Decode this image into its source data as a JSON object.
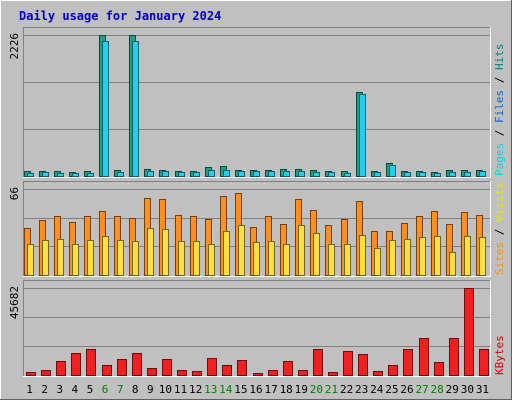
{
  "chart_data": {
    "type": "bar",
    "title": "Daily usage for January 2024",
    "days": [
      "1",
      "2",
      "3",
      "4",
      "5",
      "6",
      "7",
      "8",
      "9",
      "10",
      "11",
      "12",
      "13",
      "14",
      "15",
      "16",
      "17",
      "18",
      "19",
      "20",
      "21",
      "22",
      "23",
      "24",
      "25",
      "26",
      "27",
      "28",
      "29",
      "30",
      "31"
    ],
    "weekend_days": [
      "6",
      "7",
      "13",
      "14",
      "20",
      "21",
      "27",
      "28"
    ],
    "panels": [
      {
        "id": "hits",
        "max_label": "2226",
        "ymax": 2226,
        "legend": [
          "Pages",
          "Files",
          "Hits"
        ],
        "legend_colors": [
          "#00d8e8",
          "#0068d0",
          "#00807a"
        ],
        "series": [
          {
            "name": "Hits",
            "color": "#20a080",
            "values": [
              75,
              75,
              75,
              65,
              75,
              2226,
              90,
              2226,
              115,
              90,
              85,
              85,
              135,
              155,
              100,
              95,
              95,
              110,
              110,
              95,
              80,
              75,
              1320,
              85,
              200,
              85,
              75,
              65,
              95,
              90,
              95
            ]
          },
          {
            "name": "Files",
            "color": "#20d0f0",
            "values": [
              55,
              60,
              55,
              45,
              55,
              2130,
              70,
              2130,
              80,
              75,
              65,
              70,
              100,
              95,
              80,
              75,
              75,
              85,
              85,
              70,
              60,
              55,
              1290,
              65,
              170,
              60,
              60,
              45,
              70,
              70,
              75
            ]
          }
        ]
      },
      {
        "id": "visits",
        "max_label": "66",
        "ymax": 66,
        "legend": [
          "Sites",
          "Visits"
        ],
        "legend_colors": [
          "#ff9000",
          "#e8e800"
        ],
        "series": [
          {
            "name": "Visits",
            "color": "#ff9020",
            "values": [
              36,
              42,
              45,
              41,
              45,
              49,
              45,
              44,
              59,
              58,
              46,
              45,
              43,
              61,
              63,
              37,
              45,
              39,
              58,
              50,
              38,
              43,
              57,
              34,
              34,
              40,
              45,
              49,
              39,
              48,
              46
            ]
          },
          {
            "name": "Sites",
            "color": "#ffe040",
            "values": [
              24,
              27,
              28,
              24,
              27,
              30,
              27,
              26,
              36,
              35,
              26,
              26,
              24,
              34,
              38,
              25,
              26,
              24,
              38,
              32,
              24,
              24,
              31,
              21,
              27,
              28,
              29,
              30,
              18,
              30,
              29
            ]
          }
        ]
      },
      {
        "id": "kbytes",
        "max_label": "45682",
        "ymax": 45682,
        "legend": [
          "KBytes"
        ],
        "legend_colors": [
          "#e00000"
        ],
        "series": [
          {
            "name": "KBytes",
            "color": "#f02020",
            "values": [
              1500,
              2800,
              7500,
              11500,
              13500,
              5500,
              8500,
              11500,
              3500,
              8500,
              2500,
              2000,
              9000,
              5500,
              8000,
              1000,
              2800,
              7500,
              2800,
              13500,
              1500,
              12500,
              11000,
              2000,
              5500,
              13500,
              19500,
              7000,
              19500,
              45682,
              13500
            ]
          }
        ]
      }
    ]
  }
}
